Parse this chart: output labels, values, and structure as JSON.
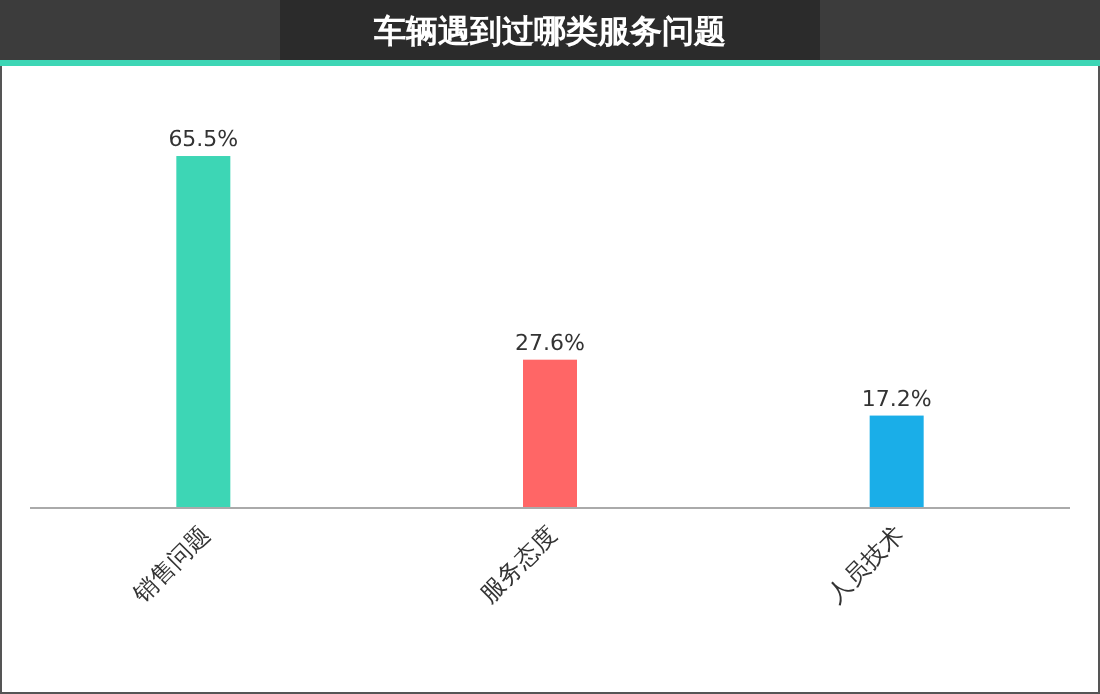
{
  "chart_data": {
    "type": "bar",
    "title": "车辆遇到过哪类服务问题",
    "categories": [
      "销售问题",
      "服务态度",
      "人员技术"
    ],
    "values": [
      65.5,
      27.6,
      17.2
    ],
    "colors": [
      "#3dd6b5",
      "#ff6666",
      "#1aaee8"
    ],
    "value_labels": [
      "65.5%",
      "27.6%",
      "17.2%"
    ]
  }
}
